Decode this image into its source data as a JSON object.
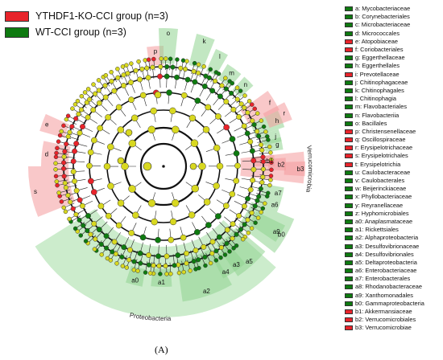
{
  "colors": {
    "enriched_ko": "#e8242b",
    "enriched_wt": "#0e7a10",
    "shade_ko": "#f49a9c",
    "shade_wt": "#8fd48f",
    "neutral_node": "#d8d820"
  },
  "groups": [
    {
      "label": "YTHDF1-KO-CCI group (n=3)",
      "color": "#e8242b"
    },
    {
      "label": "WT-CCI group (n=3)",
      "color": "#0e7a10"
    }
  ],
  "taxa": [
    {
      "key": "a",
      "label": "a: Mycobacteriaceae",
      "group": "wt"
    },
    {
      "key": "b",
      "label": "b: Corynebacteriales",
      "group": "wt"
    },
    {
      "key": "c",
      "label": "c: Microbacteriaceae",
      "group": "wt"
    },
    {
      "key": "d",
      "label": "d: Micrococcales",
      "group": "wt"
    },
    {
      "key": "e",
      "label": "e: Atopobiaceae",
      "group": "ko"
    },
    {
      "key": "f",
      "label": "f: Coriobacteriales",
      "group": "ko"
    },
    {
      "key": "g",
      "label": "g: Eggerthellaceae",
      "group": "wt"
    },
    {
      "key": "h",
      "label": "h: Eggerthellales",
      "group": "wt"
    },
    {
      "key": "i",
      "label": "i: Prevotellaceae",
      "group": "ko"
    },
    {
      "key": "j",
      "label": "j: Chitinophagaceae",
      "group": "wt"
    },
    {
      "key": "k",
      "label": "k: Chitinophagales",
      "group": "wt"
    },
    {
      "key": "l",
      "label": "l: Chitinophagia",
      "group": "wt"
    },
    {
      "key": "m",
      "label": "m: Flavobacteriales",
      "group": "wt"
    },
    {
      "key": "n",
      "label": "n: Flavobacteriia",
      "group": "wt"
    },
    {
      "key": "o",
      "label": "o: Bacillales",
      "group": "wt"
    },
    {
      "key": "p",
      "label": "p: Christensenellaceae",
      "group": "ko"
    },
    {
      "key": "q",
      "label": "q: Oscillospiraceae",
      "group": "ko"
    },
    {
      "key": "r",
      "label": "r: Erysipelotrichaceae",
      "group": "ko"
    },
    {
      "key": "s",
      "label": "s: Erysipelotrichales",
      "group": "ko"
    },
    {
      "key": "t",
      "label": "t: Erysipelotrichia",
      "group": "ko"
    },
    {
      "key": "u",
      "label": "u: Caulobacteraceae",
      "group": "wt"
    },
    {
      "key": "v",
      "label": "v: Caulobacterales",
      "group": "wt"
    },
    {
      "key": "w",
      "label": "w: Beijerinckiaceae",
      "group": "wt"
    },
    {
      "key": "x",
      "label": "x: Phyllobacteriaceae",
      "group": "wt"
    },
    {
      "key": "y",
      "label": "y: Reyranellaceae",
      "group": "wt"
    },
    {
      "key": "z",
      "label": "z: Hyphomicrobiales",
      "group": "wt"
    },
    {
      "key": "a0",
      "label": "a0: Anaplasmataceae",
      "group": "wt"
    },
    {
      "key": "a1",
      "label": "a1: Rickettsiales",
      "group": "wt"
    },
    {
      "key": "a2",
      "label": "a2: Alphaproteobacteria",
      "group": "wt"
    },
    {
      "key": "a3",
      "label": "a3: Desulfovibrionaceae",
      "group": "wt"
    },
    {
      "key": "a4",
      "label": "a4: Desulfovibrionales",
      "group": "wt"
    },
    {
      "key": "a5",
      "label": "a5: Deltaproteobacteria",
      "group": "wt"
    },
    {
      "key": "a6",
      "label": "a6: Enterobacteriaceae",
      "group": "wt"
    },
    {
      "key": "a7",
      "label": "a7: Enterobacterales",
      "group": "wt"
    },
    {
      "key": "a8",
      "label": "a8: Rhodanobacteraceae",
      "group": "wt"
    },
    {
      "key": "a9",
      "label": "a9: Xanthomonadales",
      "group": "wt"
    },
    {
      "key": "b0",
      "label": "b0: Gammaproteobacteria",
      "group": "wt"
    },
    {
      "key": "b1",
      "label": "b1: Akkermansiaceae",
      "group": "ko"
    },
    {
      "key": "b2",
      "label": "b2: Verrucomicrobiales",
      "group": "ko"
    },
    {
      "key": "b3",
      "label": "b3: Verrucomicrobiae",
      "group": "ko"
    }
  ],
  "clade_labels": [
    {
      "text": "Verrucomicrobia",
      "group": "ko"
    },
    {
      "text": "Proteobacteria",
      "group": "wt"
    }
  ],
  "panel_label": "(A)"
}
